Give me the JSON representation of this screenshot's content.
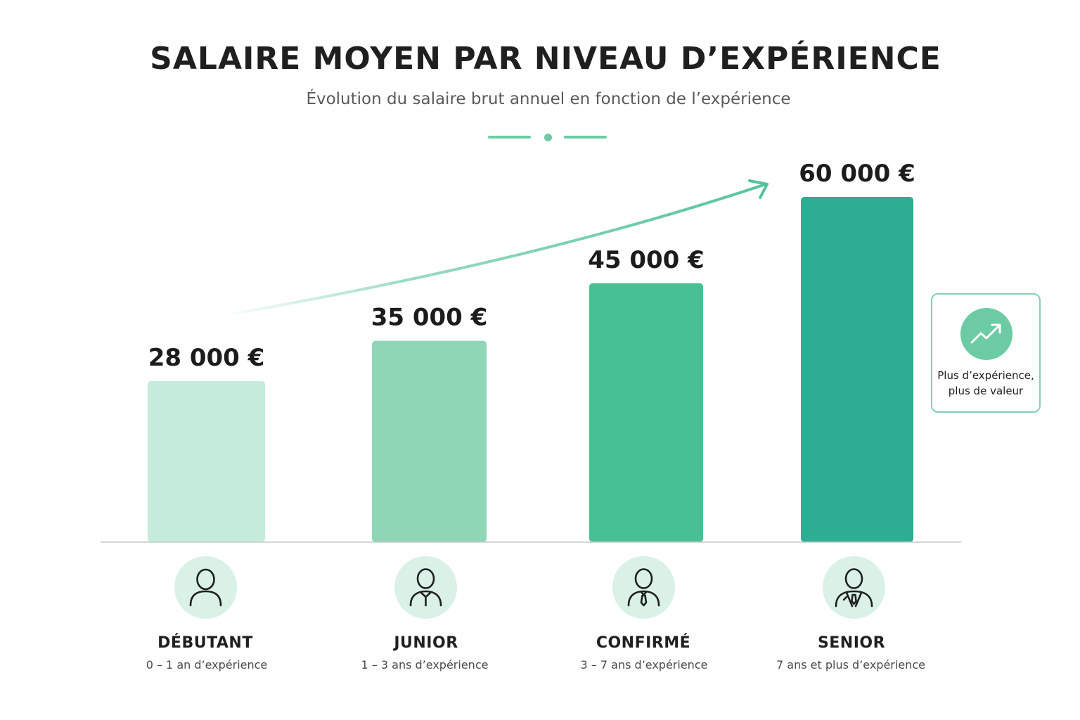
{
  "header": {
    "title": "SALAIRE MOYEN PAR NIVEAU D’EXPÉRIENCE",
    "subtitle": "Évolution du salaire brut annuel en fonction de l’expérience"
  },
  "colors": {
    "accent": "#6ccba5",
    "bar_colors": [
      "#c5ebdb",
      "#8fd6b7",
      "#47c193",
      "#2dad94"
    ]
  },
  "chart_data": {
    "type": "bar",
    "categories": [
      "DÉBUTANT",
      "JUNIOR",
      "CONFIRMÉ",
      "SENIOR"
    ],
    "category_subtitles": [
      "0 – 1 an d’expérience",
      "1 – 3 ans d’expérience",
      "3 – 7 ans d’expérience",
      "7 ans et plus d’expérience"
    ],
    "values": [
      28000,
      35000,
      45000,
      60000
    ],
    "value_labels": [
      "28 000 €",
      "35 000 €",
      "45 000 €",
      "60 000 €"
    ],
    "ylim": [
      0,
      60000
    ],
    "grid": false,
    "trend_arrow": true
  },
  "category_icons": [
    "user-icon",
    "user-collar-icon",
    "user-tie-icon",
    "user-suit-icon"
  ],
  "callout": {
    "icon": "trending-up-icon",
    "line1": "Plus d’expérience,",
    "line2": "plus de valeur"
  }
}
